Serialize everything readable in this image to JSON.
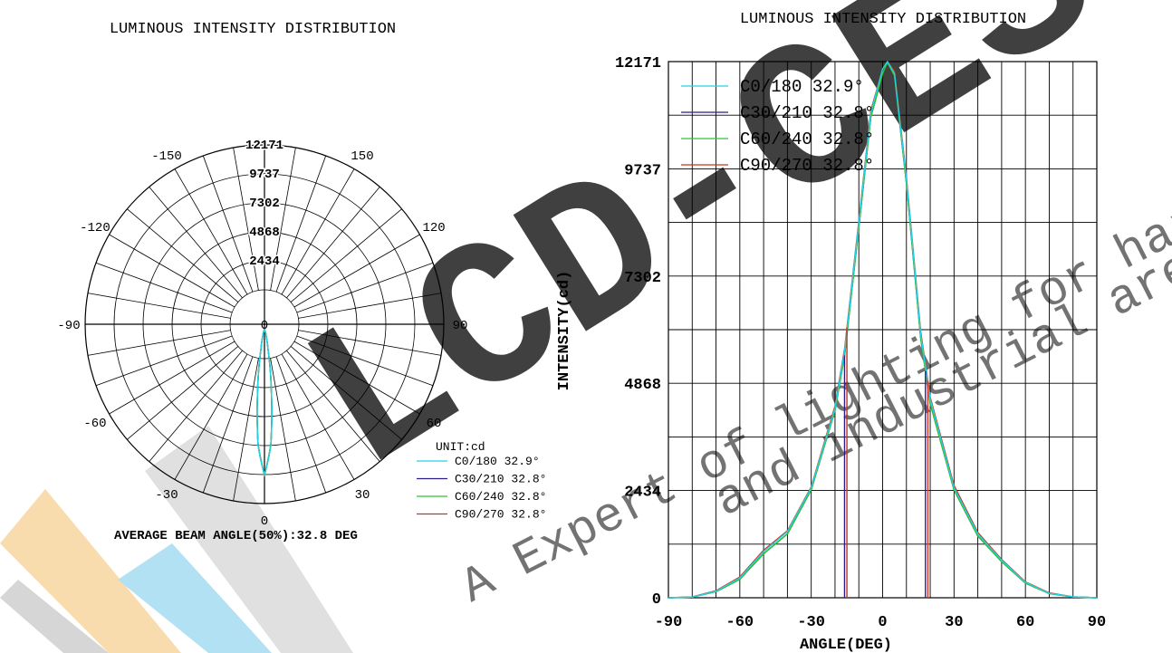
{
  "watermark": {
    "brand": "LCD-CES",
    "line1": "A Expert of lighting for harsh,",
    "line2": "and industrial area"
  },
  "colors": {
    "c0": "#22d3e6",
    "c30": "#2a1f8a",
    "c60": "#2ec52e",
    "c90": "#c8341c",
    "grid": "#000000",
    "wm_orange": "#f9dcae",
    "wm_gray": "#dadada",
    "wm_blue": "#b3e1f4",
    "wm_text": "#cccccc"
  },
  "chart_data": [
    {
      "type": "polar",
      "title": "LUMINOUS INTENSITY DISTRIBUTION",
      "radial_ticks": [
        0,
        2434,
        4868,
        7302,
        9737,
        12171
      ],
      "angle_labels": [
        "0",
        "30",
        "60",
        "90",
        "120",
        "150",
        "-150",
        "-120",
        "-90",
        "-60",
        "-30"
      ],
      "top_label": "12171",
      "center_label": "0",
      "unit": "UNIT:cd",
      "legend": [
        "C0/180 32.9°",
        "C30/210 32.8°",
        "C60/240 32.8°",
        "C90/270 32.8°"
      ],
      "footer": "AVERAGE BEAM ANGLE(50%):32.8 DEG",
      "series": [
        {
          "name": "C0/180 32.9°",
          "angles": [
            0,
            10,
            20,
            30,
            40,
            50,
            60,
            70,
            80,
            90,
            100,
            180
          ],
          "values": [
            12171,
            9900,
            5400,
            1900,
            750,
            300,
            90,
            20,
            5,
            0,
            0,
            0
          ]
        },
        {
          "name": "C30/210 32.8°",
          "angles": [
            0,
            10,
            20,
            30,
            40,
            50,
            60,
            70,
            80,
            90,
            100,
            180
          ],
          "values": [
            12171,
            9800,
            5300,
            1850,
            720,
            290,
            85,
            20,
            5,
            0,
            0,
            0
          ]
        },
        {
          "name": "C60/240 32.8°",
          "angles": [
            0,
            10,
            20,
            30,
            40,
            50,
            60,
            70,
            80,
            90,
            100,
            180
          ],
          "values": [
            12171,
            9800,
            5300,
            1850,
            720,
            290,
            85,
            20,
            5,
            0,
            0,
            0
          ]
        },
        {
          "name": "C90/270 32.8°",
          "angles": [
            0,
            10,
            20,
            30,
            40,
            50,
            60,
            70,
            80,
            90,
            100,
            180
          ],
          "values": [
            12171,
            9800,
            5350,
            1900,
            760,
            310,
            95,
            22,
            5,
            0,
            0,
            0
          ]
        }
      ]
    },
    {
      "type": "line",
      "title": "LUMINOUS INTENSITY DISTRIBUTION",
      "xlabel": "ANGLE(DEG)",
      "ylabel": "INTENSITY(cd)",
      "xlim": [
        -90,
        90
      ],
      "ylim": [
        0,
        12171
      ],
      "xticks": [
        -90,
        -60,
        -30,
        0,
        30,
        60,
        90
      ],
      "yticks": [
        0,
        2434,
        4868,
        7302,
        9737,
        12171
      ],
      "legend_placement": "top-left",
      "grid": true,
      "series": [
        {
          "name": "C0/180 32.9°",
          "x": [
            -90,
            -80,
            -70,
            -60,
            -50,
            -40,
            -30,
            -20,
            -16,
            -10,
            -5,
            0,
            2,
            5,
            10,
            16,
            20,
            30,
            40,
            50,
            60,
            70,
            80,
            90
          ],
          "y": [
            0,
            15,
            150,
            450,
            1050,
            1500,
            2500,
            4300,
            5600,
            8500,
            11000,
            12000,
            12171,
            11900,
            9500,
            6000,
            4500,
            2500,
            1450,
            850,
            350,
            100,
            20,
            0
          ]
        },
        {
          "name": "C30/210 32.8°",
          "x": [
            -90,
            -80,
            -70,
            -60,
            -50,
            -40,
            -30,
            -20,
            -16,
            -10,
            -5,
            0,
            2,
            5,
            10,
            16,
            20,
            30,
            40,
            50,
            60,
            70,
            80,
            90
          ],
          "y": [
            0,
            15,
            140,
            420,
            1000,
            1450,
            2450,
            4250,
            5500,
            8400,
            10900,
            11900,
            12150,
            11850,
            9400,
            5900,
            4400,
            2450,
            1400,
            820,
            330,
            95,
            18,
            0
          ]
        },
        {
          "name": "C60/240 32.8°",
          "x": [
            -90,
            -80,
            -70,
            -60,
            -50,
            -40,
            -30,
            -20,
            -16,
            -10,
            -5,
            0,
            2,
            5,
            10,
            16,
            20,
            30,
            40,
            50,
            60,
            70,
            80,
            90
          ],
          "y": [
            0,
            15,
            140,
            420,
            1000,
            1450,
            2450,
            4250,
            5500,
            8400,
            10900,
            11900,
            12150,
            11850,
            9400,
            5900,
            4400,
            2450,
            1400,
            820,
            330,
            95,
            18,
            0
          ]
        },
        {
          "name": "C90/270 32.8°",
          "x": [
            -90,
            -80,
            -70,
            -60,
            -50,
            -40,
            -30,
            -20,
            -16,
            -10,
            -5,
            0,
            2,
            5,
            10,
            16,
            20,
            30,
            40,
            50,
            60,
            70,
            80,
            90
          ],
          "y": [
            0,
            18,
            160,
            470,
            1080,
            1520,
            2520,
            4350,
            5650,
            8550,
            11050,
            12000,
            12171,
            11950,
            9550,
            6050,
            4550,
            2550,
            1480,
            870,
            360,
            110,
            22,
            0
          ]
        }
      ],
      "markers": [
        {
          "series": 1,
          "x": -16
        },
        {
          "series": 3,
          "x": -15
        },
        {
          "series": 1,
          "x": 18
        },
        {
          "series": 3,
          "x": 19
        }
      ]
    }
  ]
}
